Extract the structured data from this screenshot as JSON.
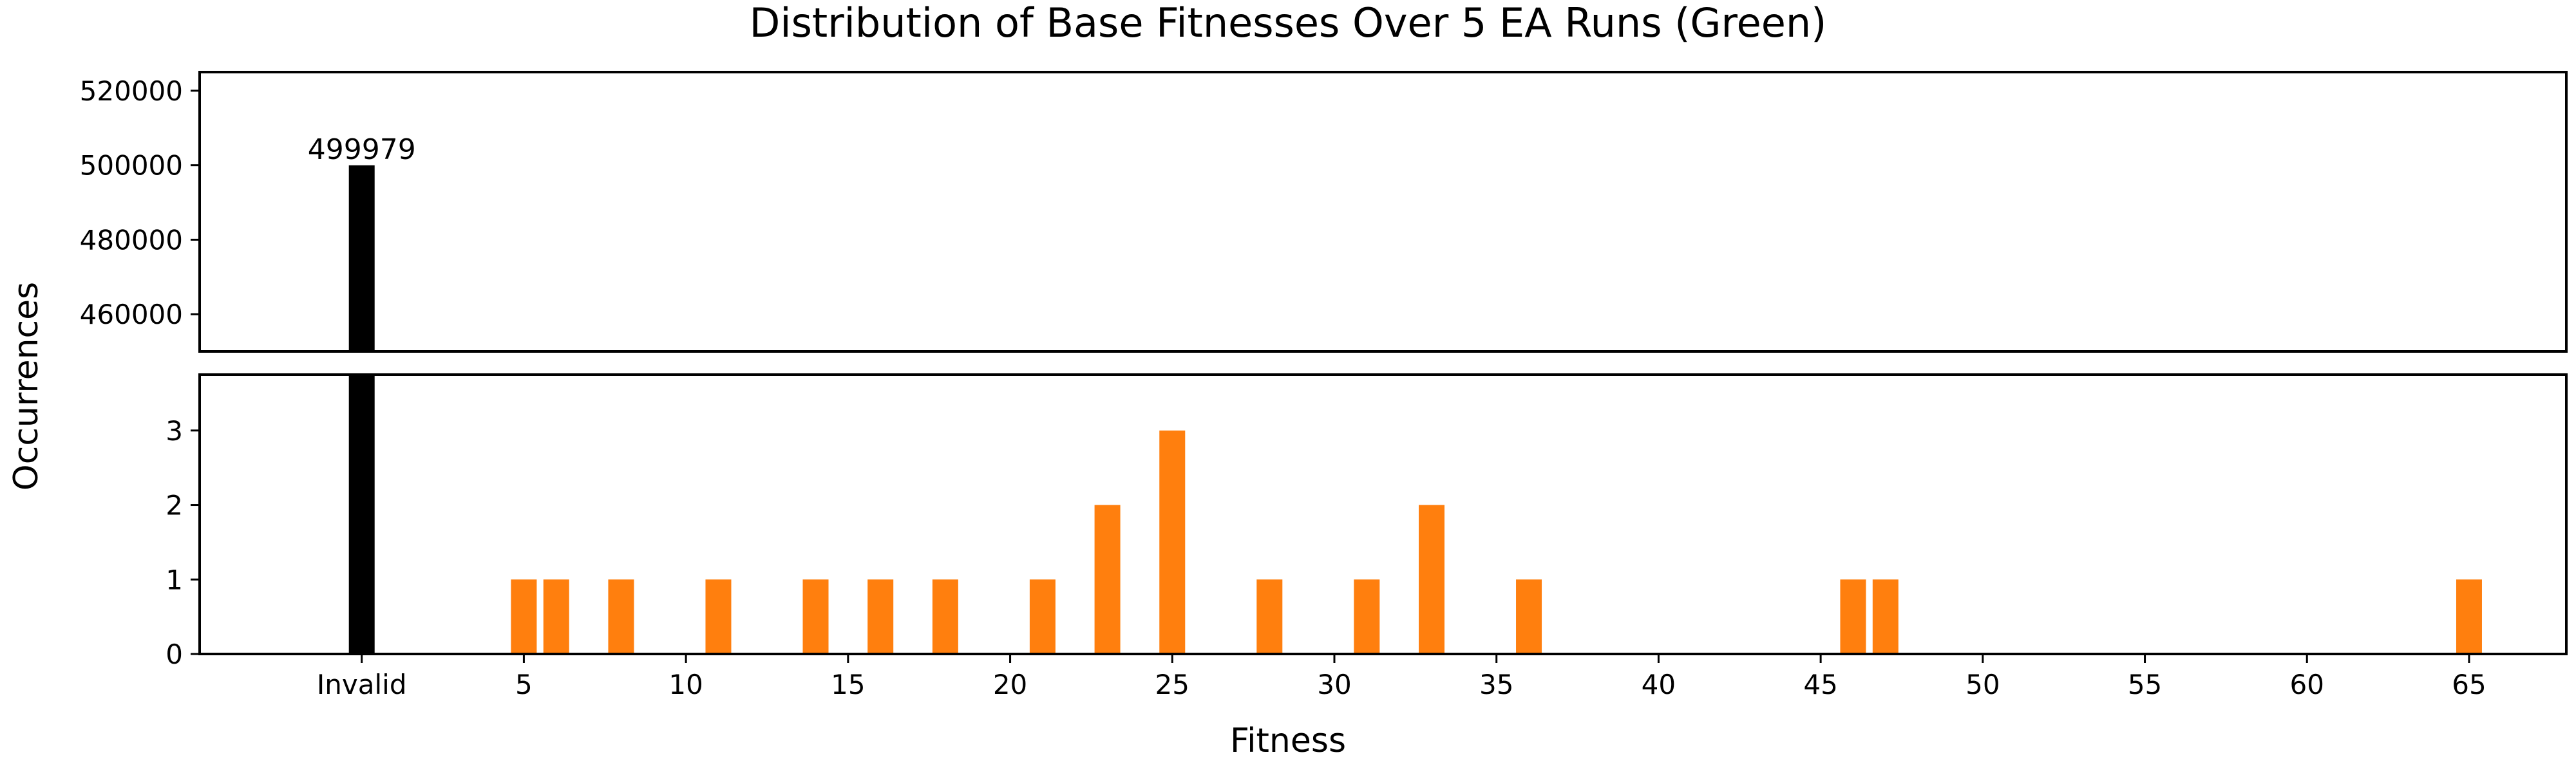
{
  "chart_data": {
    "type": "bar",
    "title": "Distribution of Base Fitnesses Over 5 EA Runs (Green)",
    "xlabel": "Fitness",
    "ylabel": "Occurrences",
    "broken_axis": true,
    "grid": false,
    "xlim": [
      -5,
      68
    ],
    "x_ticks": [
      {
        "x": 0,
        "label": "Invalid"
      },
      {
        "x": 5,
        "label": "5"
      },
      {
        "x": 10,
        "label": "10"
      },
      {
        "x": 15,
        "label": "15"
      },
      {
        "x": 20,
        "label": "20"
      },
      {
        "x": 25,
        "label": "25"
      },
      {
        "x": 30,
        "label": "30"
      },
      {
        "x": 35,
        "label": "35"
      },
      {
        "x": 40,
        "label": "40"
      },
      {
        "x": 45,
        "label": "45"
      },
      {
        "x": 50,
        "label": "50"
      },
      {
        "x": 55,
        "label": "55"
      },
      {
        "x": 60,
        "label": "60"
      },
      {
        "x": 65,
        "label": "65"
      }
    ],
    "top_panel": {
      "ylim": [
        450000,
        525000
      ],
      "yticks": [
        460000,
        480000,
        500000,
        520000
      ]
    },
    "bottom_panel": {
      "ylim": [
        0,
        3.75
      ],
      "yticks": [
        0,
        1,
        2,
        3
      ]
    },
    "series": [
      {
        "category": "invalid",
        "color": "#000000",
        "points": [
          {
            "x": 0,
            "label": "Invalid",
            "value": 499979,
            "data_label": "499979"
          }
        ]
      },
      {
        "category": "valid",
        "color": "#ff7f0e",
        "points": [
          {
            "x": 5,
            "value": 1
          },
          {
            "x": 6,
            "value": 1
          },
          {
            "x": 8,
            "value": 1
          },
          {
            "x": 11,
            "value": 1
          },
          {
            "x": 14,
            "value": 1
          },
          {
            "x": 16,
            "value": 1
          },
          {
            "x": 18,
            "value": 1
          },
          {
            "x": 21,
            "value": 1
          },
          {
            "x": 23,
            "value": 2
          },
          {
            "x": 25,
            "value": 3
          },
          {
            "x": 28,
            "value": 1
          },
          {
            "x": 31,
            "value": 1
          },
          {
            "x": 33,
            "value": 2
          },
          {
            "x": 36,
            "value": 1
          },
          {
            "x": 46,
            "value": 1
          },
          {
            "x": 47,
            "value": 1
          },
          {
            "x": 65,
            "value": 1
          }
        ]
      }
    ]
  }
}
